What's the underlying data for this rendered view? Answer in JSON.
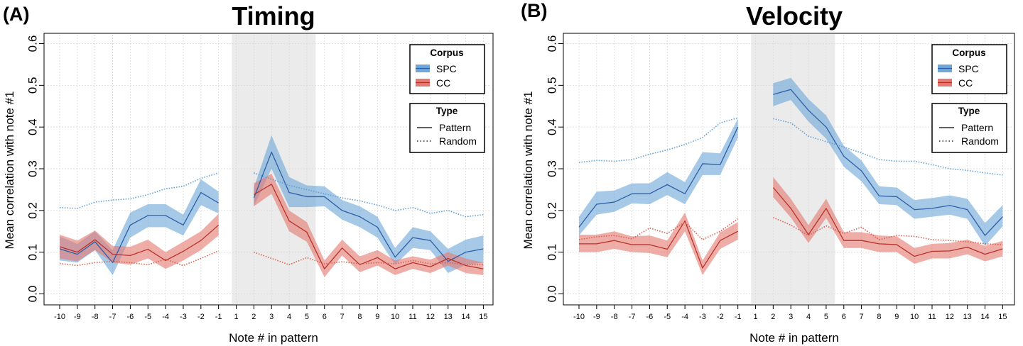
{
  "chart_data": [
    {
      "type": "line",
      "panel_label": "(A)",
      "title": "Timing",
      "xlabel": "Note # in pattern",
      "ylabel": "Mean correlation with note #1",
      "ylim": [
        0,
        0.6
      ],
      "yticks": [
        "0.0",
        "0.1",
        "0.2",
        "0.3",
        "0.4",
        "0.5",
        "0.6"
      ],
      "x": [
        -10,
        -9,
        -8,
        -7,
        -6,
        -5,
        -4,
        -3,
        -2,
        -1,
        1,
        2,
        3,
        4,
        5,
        6,
        7,
        8,
        9,
        10,
        11,
        12,
        13,
        14,
        15
      ],
      "xtick_labels": [
        "-10",
        "-9",
        "-8",
        "-7",
        "-6",
        "-5",
        "-4",
        "-3",
        "-2",
        "-1",
        "1",
        "2",
        "3",
        "4",
        "5",
        "6",
        "7",
        "8",
        "9",
        "10",
        "11",
        "12",
        "13",
        "14",
        "15"
      ],
      "shaded_region": [
        0.5,
        5.5
      ],
      "grid": true,
      "legend": {
        "corpus_title": "Corpus",
        "corpus_entries": [
          {
            "label": "SPC",
            "color": "#2e5fa8",
            "fill": "#6ea8d8"
          },
          {
            "label": "CC",
            "color": "#b8322a",
            "fill": "#e57a72"
          }
        ],
        "type_title": "Type",
        "type_entries": [
          {
            "label": "Pattern",
            "style": "solid"
          },
          {
            "label": "Random",
            "style": "dotted"
          }
        ],
        "position": "top-right"
      },
      "series": [
        {
          "name": "SPC Pattern",
          "color": "#2e5fa8",
          "band_color": "#6ea8d8",
          "style": "solid",
          "values": [
            0.108,
            0.095,
            0.125,
            0.075,
            0.165,
            0.188,
            0.188,
            0.165,
            0.243,
            0.218,
            null,
            0.23,
            0.34,
            0.243,
            0.233,
            0.233,
            0.2,
            0.185,
            0.16,
            0.088,
            0.135,
            0.128,
            0.078,
            0.1,
            0.108
          ],
          "band_lower": [
            0.08,
            0.075,
            0.105,
            0.045,
            0.135,
            0.16,
            0.16,
            0.14,
            0.213,
            0.193,
            null,
            0.21,
            0.3,
            0.208,
            0.208,
            0.21,
            0.178,
            0.16,
            0.135,
            0.07,
            0.11,
            0.105,
            0.05,
            0.07,
            0.075
          ],
          "band_upper": [
            0.138,
            0.12,
            0.15,
            0.105,
            0.195,
            0.215,
            0.215,
            0.19,
            0.275,
            0.245,
            null,
            0.255,
            0.38,
            0.28,
            0.26,
            0.258,
            0.225,
            0.21,
            0.185,
            0.11,
            0.16,
            0.15,
            0.108,
            0.13,
            0.14
          ]
        },
        {
          "name": "CC Pattern",
          "color": "#b8322a",
          "band_color": "#e57a72",
          "style": "solid",
          "values": [
            0.113,
            0.1,
            0.13,
            0.095,
            0.092,
            0.107,
            0.08,
            0.102,
            0.128,
            0.165,
            null,
            0.238,
            0.263,
            0.175,
            0.148,
            0.06,
            0.11,
            0.07,
            0.087,
            0.06,
            0.075,
            0.065,
            0.085,
            0.068,
            0.06
          ],
          "band_lower": [
            0.085,
            0.078,
            0.105,
            0.075,
            0.07,
            0.085,
            0.06,
            0.08,
            0.105,
            0.14,
            null,
            0.21,
            0.24,
            0.15,
            0.125,
            0.04,
            0.092,
            0.052,
            0.068,
            0.045,
            0.06,
            0.05,
            0.068,
            0.05,
            0.045
          ],
          "band_upper": [
            0.142,
            0.128,
            0.152,
            0.115,
            0.113,
            0.13,
            0.1,
            0.125,
            0.15,
            0.192,
            null,
            0.265,
            0.288,
            0.2,
            0.172,
            0.08,
            0.13,
            0.09,
            0.105,
            0.08,
            0.09,
            0.082,
            0.1,
            0.085,
            0.075
          ]
        },
        {
          "name": "SPC Random",
          "color": "#5f9fd8",
          "style": "dotted",
          "values": [
            0.207,
            0.205,
            0.22,
            0.225,
            0.228,
            0.238,
            0.252,
            0.258,
            0.277,
            0.29,
            null,
            0.29,
            0.275,
            0.26,
            0.25,
            0.24,
            0.23,
            0.223,
            0.213,
            0.2,
            0.207,
            0.193,
            0.2,
            0.185,
            0.19
          ],
          "band_lower": null,
          "band_upper": null
        },
        {
          "name": "CC Random",
          "color": "#d8604f",
          "style": "dotted",
          "values": [
            0.073,
            0.068,
            0.075,
            0.078,
            0.075,
            0.07,
            0.083,
            0.068,
            0.085,
            0.103,
            null,
            0.1,
            0.085,
            0.07,
            0.087,
            0.072,
            0.077,
            0.072,
            0.075,
            0.072,
            0.08,
            0.072,
            0.075,
            0.07,
            0.07
          ],
          "band_lower": null,
          "band_upper": null
        }
      ]
    },
    {
      "type": "line",
      "panel_label": "(B)",
      "title": "Velocity",
      "xlabel": "Note # in pattern",
      "ylabel": "Mean correlation with note #1",
      "ylim": [
        0,
        0.6
      ],
      "yticks": [
        "0.0",
        "0.1",
        "0.2",
        "0.3",
        "0.4",
        "0.5",
        "0.6"
      ],
      "x": [
        -10,
        -9,
        -8,
        -7,
        -6,
        -5,
        -4,
        -3,
        -2,
        -1,
        1,
        2,
        3,
        4,
        5,
        6,
        7,
        8,
        9,
        10,
        11,
        12,
        13,
        14,
        15
      ],
      "xtick_labels": [
        "-10",
        "-9",
        "-8",
        "-7",
        "-6",
        "-5",
        "-4",
        "-3",
        "-2",
        "-1",
        "1",
        "2",
        "3",
        "4",
        "5",
        "6",
        "7",
        "8",
        "9",
        "10",
        "11",
        "12",
        "13",
        "14",
        "15"
      ],
      "shaded_region": [
        0.5,
        5.5
      ],
      "grid": true,
      "legend": {
        "corpus_title": "Corpus",
        "corpus_entries": [
          {
            "label": "SPC",
            "color": "#2e5fa8",
            "fill": "#6ea8d8"
          },
          {
            "label": "CC",
            "color": "#b8322a",
            "fill": "#e57a72"
          }
        ],
        "type_title": "Type",
        "type_entries": [
          {
            "label": "Pattern",
            "style": "solid"
          },
          {
            "label": "Random",
            "style": "dotted"
          }
        ],
        "position": "top-right"
      },
      "series": [
        {
          "name": "SPC Pattern",
          "color": "#2e5fa8",
          "band_color": "#6ea8d8",
          "style": "solid",
          "values": [
            0.16,
            0.215,
            0.22,
            0.24,
            0.24,
            0.262,
            0.24,
            0.312,
            0.31,
            0.4,
            null,
            0.478,
            0.49,
            0.44,
            0.4,
            0.33,
            0.295,
            0.235,
            0.233,
            0.202,
            0.205,
            0.212,
            0.202,
            0.14,
            0.185
          ],
          "band_lower": [
            0.14,
            0.19,
            0.197,
            0.217,
            0.215,
            0.237,
            0.215,
            0.285,
            0.285,
            0.375,
            null,
            0.45,
            0.465,
            0.413,
            0.372,
            0.305,
            0.27,
            0.215,
            0.213,
            0.18,
            0.185,
            0.19,
            0.18,
            0.115,
            0.162
          ],
          "band_upper": [
            0.185,
            0.245,
            0.248,
            0.265,
            0.265,
            0.292,
            0.268,
            0.34,
            0.337,
            0.42,
            null,
            0.505,
            0.518,
            0.467,
            0.428,
            0.355,
            0.32,
            0.258,
            0.255,
            0.225,
            0.23,
            0.236,
            0.228,
            0.17,
            0.213
          ]
        },
        {
          "name": "CC Pattern",
          "color": "#b8322a",
          "band_color": "#e57a72",
          "style": "solid",
          "values": [
            0.12,
            0.12,
            0.128,
            0.118,
            0.118,
            0.107,
            0.175,
            0.062,
            0.128,
            0.15,
            null,
            0.255,
            0.205,
            0.142,
            0.205,
            0.128,
            0.128,
            0.12,
            0.118,
            0.09,
            0.102,
            0.103,
            0.112,
            0.095,
            0.108
          ],
          "band_lower": [
            0.1,
            0.1,
            0.108,
            0.1,
            0.098,
            0.088,
            0.15,
            0.045,
            0.108,
            0.13,
            null,
            0.232,
            0.183,
            0.122,
            0.182,
            0.11,
            0.11,
            0.1,
            0.1,
            0.072,
            0.085,
            0.085,
            0.095,
            0.078,
            0.09
          ],
          "band_upper": [
            0.142,
            0.142,
            0.15,
            0.138,
            0.14,
            0.128,
            0.195,
            0.08,
            0.148,
            0.172,
            null,
            0.28,
            0.228,
            0.165,
            0.228,
            0.148,
            0.148,
            0.14,
            0.138,
            0.11,
            0.12,
            0.122,
            0.13,
            0.115,
            0.127
          ]
        },
        {
          "name": "SPC Random",
          "color": "#5f9fd8",
          "style": "dotted",
          "values": [
            0.315,
            0.32,
            0.318,
            0.322,
            0.335,
            0.345,
            0.358,
            0.375,
            0.41,
            0.422,
            null,
            0.42,
            0.41,
            0.378,
            0.365,
            0.352,
            0.338,
            0.322,
            0.318,
            0.318,
            0.31,
            0.3,
            0.296,
            0.29,
            0.285
          ],
          "band_lower": null,
          "band_upper": null
        },
        {
          "name": "CC Random",
          "color": "#d8604f",
          "style": "dotted",
          "values": [
            0.13,
            0.137,
            0.14,
            0.132,
            0.158,
            0.145,
            0.172,
            0.13,
            0.15,
            0.18,
            null,
            0.183,
            0.165,
            0.14,
            0.163,
            0.145,
            0.16,
            0.13,
            0.14,
            0.138,
            0.13,
            0.128,
            0.125,
            0.12,
            0.118
          ],
          "band_lower": null,
          "band_upper": null
        }
      ]
    }
  ]
}
